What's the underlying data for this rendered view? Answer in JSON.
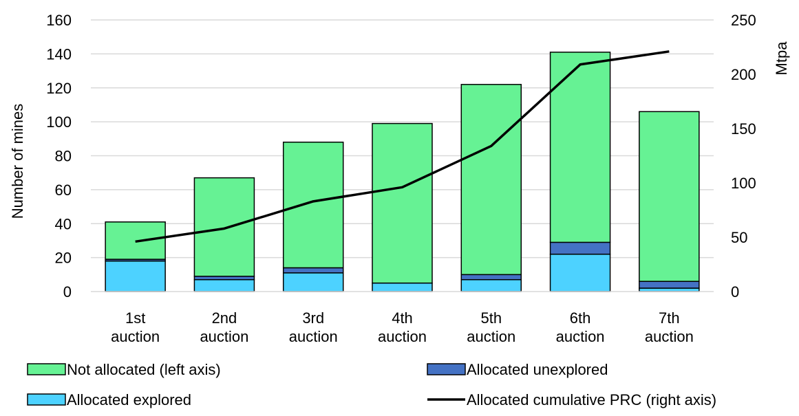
{
  "chart_data": {
    "type": "bar",
    "stacked": true,
    "categories": [
      [
        "1st",
        "auction"
      ],
      [
        "2nd",
        "auction"
      ],
      [
        "3rd",
        "auction"
      ],
      [
        "4th",
        "auction"
      ],
      [
        "5th",
        "auction"
      ],
      [
        "6th",
        "auction"
      ],
      [
        "7th",
        "auction"
      ]
    ],
    "series": [
      {
        "name": "Allocated explored",
        "kind": "bar",
        "axis": "left",
        "color": "#4dd2ff",
        "values": [
          18,
          7,
          11,
          5,
          7,
          22,
          2
        ]
      },
      {
        "name": "Allocated unexplored",
        "kind": "bar",
        "axis": "left",
        "color": "#4472c4",
        "values": [
          1,
          2,
          3,
          0,
          3,
          7,
          4
        ]
      },
      {
        "name": "Not allocated (left axis)",
        "kind": "bar",
        "axis": "left",
        "color": "#66f294",
        "values": [
          22,
          58,
          74,
          94,
          112,
          112,
          100
        ]
      },
      {
        "name": "Allocated cumulative PRC (right axis)",
        "kind": "line",
        "axis": "right",
        "color": "#000000",
        "values": [
          46,
          58,
          83,
          96,
          134,
          209,
          221
        ]
      }
    ],
    "ylabel": "Number of mines",
    "y2label": "Mtpa",
    "ylim": [
      0,
      160
    ],
    "y2lim": [
      0,
      250
    ],
    "yticks": [
      0,
      20,
      40,
      60,
      80,
      100,
      120,
      140,
      160
    ],
    "y2ticks": [
      0,
      50,
      100,
      150,
      200,
      250
    ],
    "grid": true,
    "legend": {
      "placement": "bottom",
      "entries": [
        "Not allocated (left axis)",
        "Allocated unexplored",
        "Allocated explored",
        "Allocated cumulative PRC (right axis)"
      ]
    }
  }
}
